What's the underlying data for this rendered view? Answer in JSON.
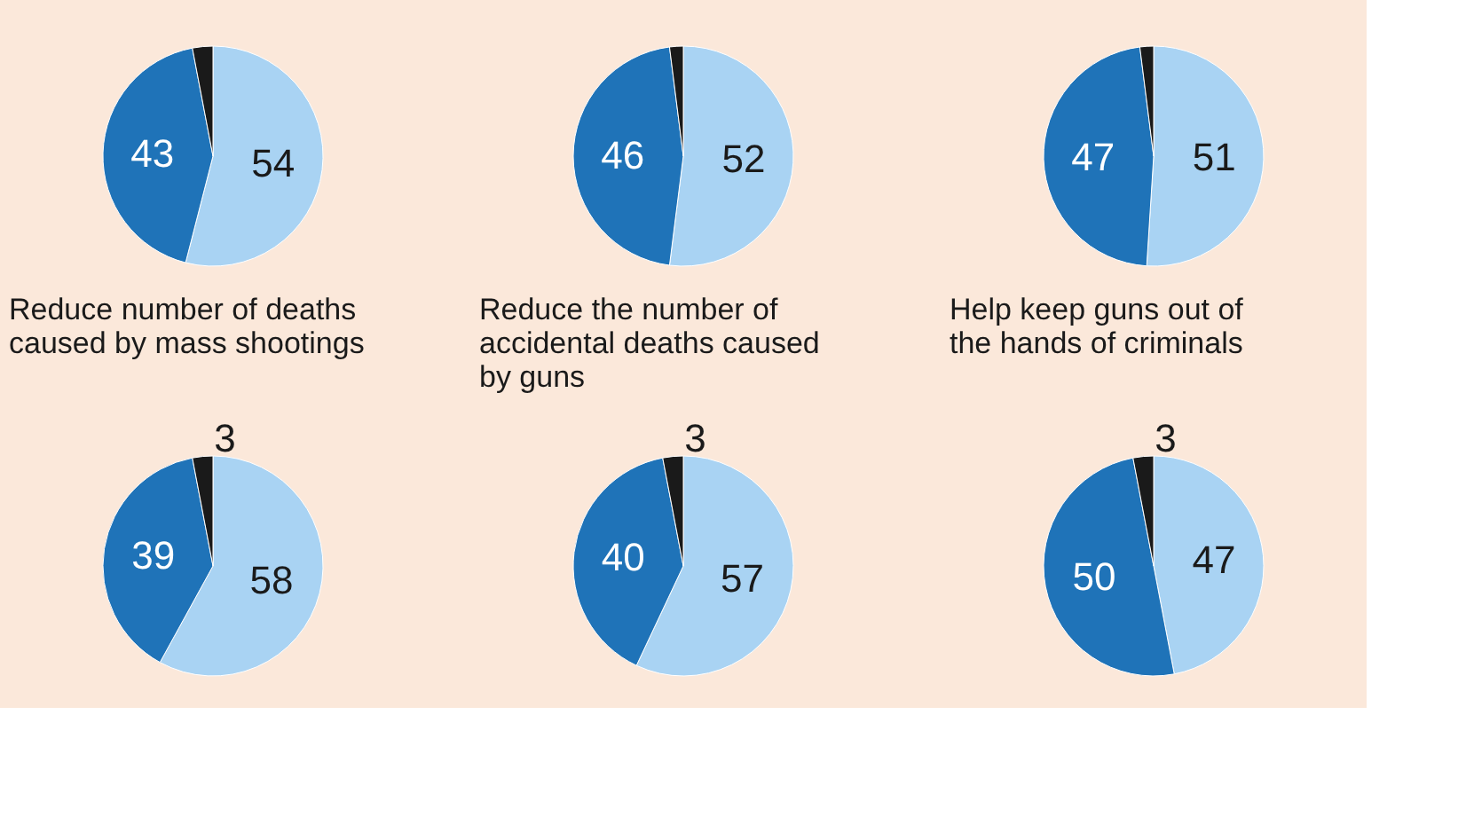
{
  "chart_data": [
    {
      "type": "pie",
      "title": "Reduce number of deaths caused by mass shootings",
      "categories": [
        null,
        null,
        null
      ],
      "values": [
        54,
        43,
        3
      ],
      "colors": [
        "#a9d3f3",
        "#1f73b8",
        "#1a1a1a"
      ],
      "value_labels": [
        "54",
        "43",
        null
      ]
    },
    {
      "type": "pie",
      "title": "Reduce the number of accidental deaths caused by guns",
      "categories": [
        null,
        null,
        null
      ],
      "values": [
        52,
        46,
        2
      ],
      "colors": [
        "#a9d3f3",
        "#1f73b8",
        "#1a1a1a"
      ],
      "value_labels": [
        "52",
        "46",
        null
      ]
    },
    {
      "type": "pie",
      "title": "Help keep guns out of the hands of criminals",
      "categories": [
        null,
        null,
        null
      ],
      "values": [
        51,
        47,
        2
      ],
      "colors": [
        "#a9d3f3",
        "#1f73b8",
        "#1a1a1a"
      ],
      "value_labels": [
        "51",
        "47",
        null
      ]
    },
    {
      "type": "pie",
      "categories": [
        null,
        null,
        null
      ],
      "values": [
        58,
        39,
        3
      ],
      "colors": [
        "#a9d3f3",
        "#1f73b8",
        "#1a1a1a"
      ],
      "data_labels": true
    },
    {
      "type": "pie",
      "categories": [
        null,
        null,
        null
      ],
      "values": [
        57,
        40,
        3
      ],
      "colors": [
        "#a9d3f3",
        "#1f73b8",
        "#1a1a1a"
      ],
      "data_labels": true
    },
    {
      "type": "pie",
      "categories": [
        null,
        null,
        null
      ],
      "values": [
        47,
        50,
        3
      ],
      "colors": [
        "#a9d3f3",
        "#1f73b8",
        "#1a1a1a"
      ],
      "data_labels": true
    }
  ]
}
